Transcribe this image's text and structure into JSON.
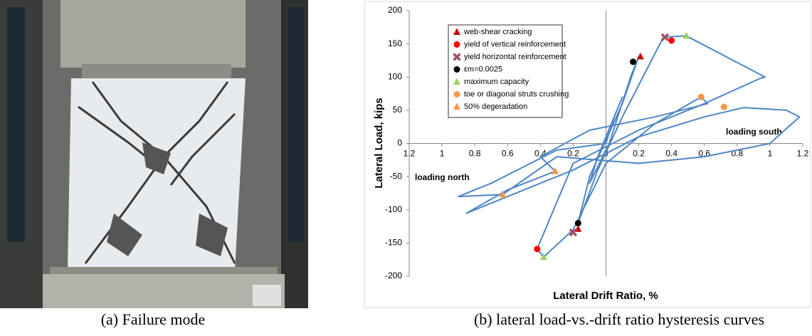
{
  "figure": {
    "caption_a": "(a) Failure mode",
    "caption_b": "(b) lateral load-vs.-drift ratio hysteresis curves"
  },
  "chart_data": {
    "type": "hysteresis",
    "x_label": "Lateral Drift Ratio, %",
    "y_label": "Lateral Load, kips",
    "annotations": [
      "loading south",
      "loading north"
    ],
    "xlim": [
      -1.2,
      1.2
    ],
    "ylim": [
      -200,
      200
    ],
    "xticks": [
      {
        "value": -1.2,
        "label": "1.2"
      },
      {
        "value": -1,
        "label": "1"
      },
      {
        "value": -0.8,
        "label": "0.8"
      },
      {
        "value": -0.6,
        "label": "0.6"
      },
      {
        "value": -0.4,
        "label": "0.4"
      },
      {
        "value": -0.2,
        "label": "0.2"
      },
      0,
      0.2,
      0.4,
      0.6,
      0.8,
      1,
      1.2
    ],
    "yticks": [
      -200,
      -150,
      -100,
      -50,
      0,
      50,
      100,
      150,
      200
    ],
    "grid": false,
    "curve": {
      "color": "#4f86c6",
      "x": [
        0,
        0.05,
        0.1,
        -0.05,
        -0.1,
        0.02,
        0.15,
        0.2,
        0.1,
        -0.1,
        -0.17,
        -0.05,
        0.1,
        0.35,
        0.49,
        0.97,
        0.94,
        0.6,
        0.2,
        -0.2,
        -0.42,
        -0.38,
        -0.2,
        0,
        0.3,
        0.58,
        0.62,
        0.3,
        -0.1,
        -0.4,
        -0.31,
        -0.6,
        -0.85,
        -0.6,
        -0.2,
        0.2,
        0.6,
        0.84,
        1.1,
        1.18,
        1.0,
        0.6,
        0.2,
        -0.3,
        -0.63,
        -0.9,
        -0.7,
        -0.3,
        0
      ],
      "y": [
        0,
        40,
        70,
        -20,
        -60,
        0,
        100,
        131,
        60,
        -50,
        -120,
        -40,
        40,
        160,
        162,
        100,
        98,
        60,
        20,
        -30,
        -159,
        -171,
        -130,
        -30,
        30,
        70,
        60,
        40,
        20,
        -20,
        -42,
        -70,
        -105,
        -80,
        -40,
        10,
        40,
        54,
        50,
        40,
        0,
        -20,
        -30,
        -20,
        -77,
        -80,
        -60,
        -10,
        0
      ]
    },
    "series": [
      {
        "name": "web-shear cracking",
        "color": "#d00000",
        "marker": "triangle",
        "x": [
          0.21,
          -0.17
        ],
        "y": [
          131,
          -129
        ]
      },
      {
        "name": "yield of vertical reinforcement",
        "color": "#ff0000",
        "marker": "circle",
        "x": [
          0.4,
          -0.42
        ],
        "y": [
          155,
          -159
        ]
      },
      {
        "name": "yield horizontal reinforcement",
        "color": "#a0525f",
        "marker": "x",
        "x": [
          0.36,
          -0.2
        ],
        "y": [
          160,
          -134
        ]
      },
      {
        "name": "εm=0.0025",
        "color": "#000000",
        "marker": "circle",
        "x": [
          0.165,
          -0.17
        ],
        "y": [
          123,
          -120
        ]
      },
      {
        "name": "maximum capacity",
        "color": "#9bd05a",
        "marker": "triangle",
        "x": [
          0.49,
          -0.38
        ],
        "y": [
          162,
          -171
        ]
      },
      {
        "name": "toe or diagonal struts crushing",
        "color": "#f79646",
        "marker": "circle",
        "x": [
          0.58,
          0.72
        ],
        "y": [
          70,
          55
        ]
      },
      {
        "name": "50% degeradation",
        "color": "#f79646",
        "marker": "triangle",
        "x": [
          -0.31,
          -0.63
        ],
        "y": [
          -42,
          -77
        ]
      }
    ],
    "legend": "upper left"
  }
}
